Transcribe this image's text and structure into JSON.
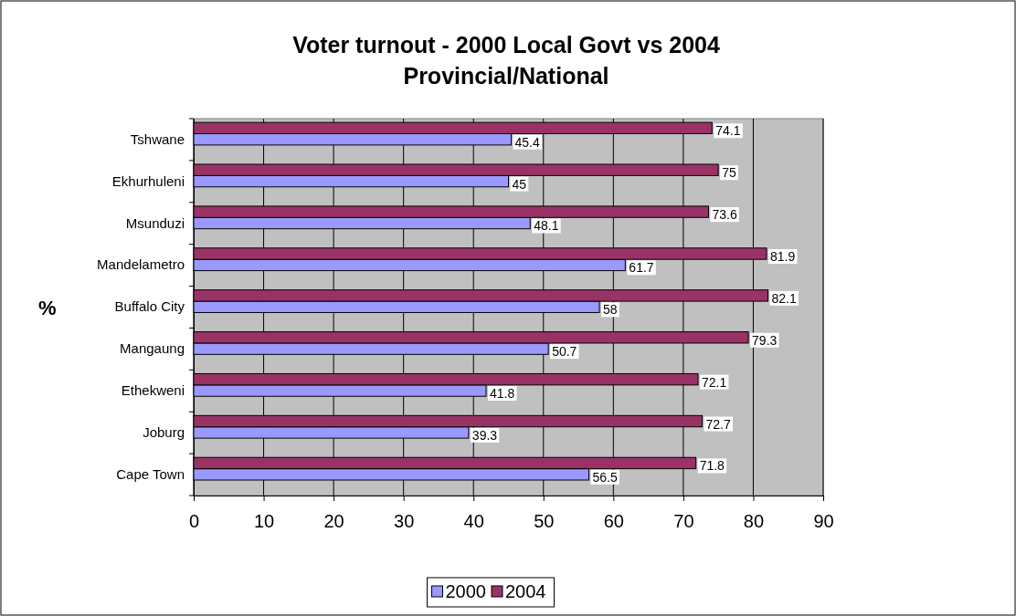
{
  "chart_data": {
    "type": "bar",
    "orientation": "horizontal",
    "title": "Voter turnout - 2000 Local Govt vs 2004 Provincial/National",
    "ylabel": "%",
    "categories": [
      "Tshwane",
      "Ekhurhuleni",
      "Msunduzi",
      "Mandelametro",
      "Buffalo City",
      "Mangaung",
      "Ethekweni",
      "Joburg",
      "Cape Town"
    ],
    "series": [
      {
        "name": "2000",
        "color": "#9999ff",
        "values": [
          45.4,
          45,
          48.1,
          61.7,
          58,
          50.7,
          41.8,
          39.3,
          56.5
        ]
      },
      {
        "name": "2004",
        "color": "#993366",
        "values": [
          74.1,
          75,
          73.6,
          81.9,
          82.1,
          79.3,
          72.1,
          72.7,
          71.8
        ]
      }
    ],
    "xlim": [
      0,
      90
    ],
    "xticks": [
      0,
      10,
      20,
      30,
      40,
      50,
      60,
      70,
      80,
      90
    ],
    "grid": "x",
    "legend": "bottom",
    "data_labels": true
  }
}
